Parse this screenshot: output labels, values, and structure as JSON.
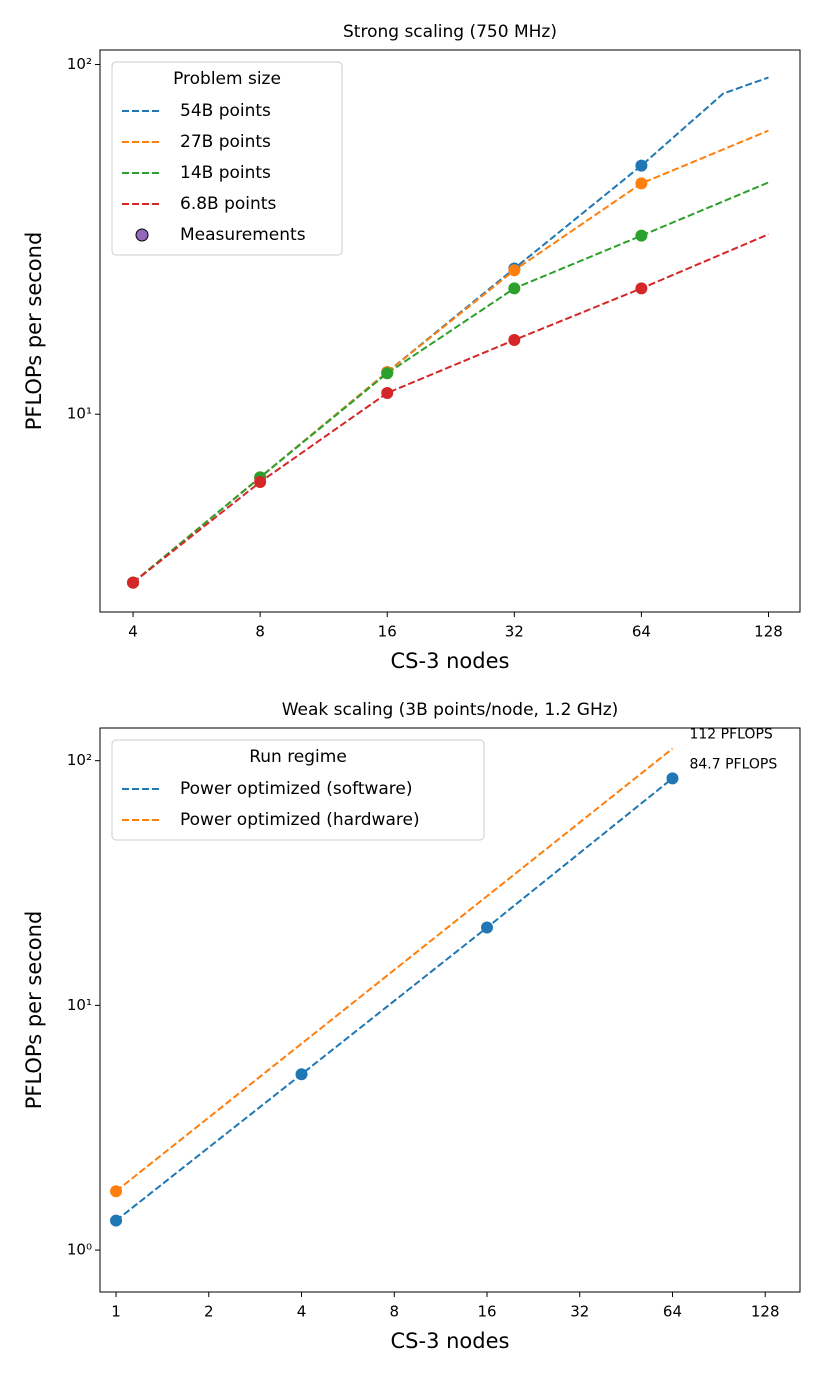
{
  "chart_data": [
    {
      "type": "line",
      "title": "Strong scaling (750 MHz)",
      "xlabel": "CS-3 nodes",
      "ylabel": "PFLOPs per second",
      "xscale": "log",
      "yscale": "log",
      "xlim": [
        3.34,
        152
      ],
      "ylim": [
        2.72,
        110
      ],
      "xticks": [
        4,
        8,
        16,
        32,
        64,
        128
      ],
      "yticks": [
        {
          "value": 10,
          "label": "10¹"
        },
        {
          "value": 100,
          "label": "10²"
        }
      ],
      "legend_title": "Problem size",
      "legend_position": "upper left",
      "marker_legend": {
        "name": "Measurements",
        "color": "#9467bd"
      },
      "series": [
        {
          "name": "54B points",
          "color": "#1f77b4",
          "x": [
            4,
            8,
            16,
            32,
            64,
            100,
            128
          ],
          "values": [
            3.3,
            6.6,
            13.2,
            26.1,
            51.4,
            82.6,
            91.8
          ],
          "measured": [
            true,
            true,
            true,
            true,
            true,
            false,
            false
          ]
        },
        {
          "name": "27B points",
          "color": "#ff7f0e",
          "x": [
            4,
            8,
            16,
            32,
            64,
            128
          ],
          "values": [
            3.3,
            6.6,
            13.2,
            25.8,
            45.7,
            64.7
          ],
          "measured": [
            true,
            true,
            true,
            true,
            true,
            false
          ]
        },
        {
          "name": "14B points",
          "color": "#2ca02c",
          "x": [
            4,
            8,
            16,
            32,
            64,
            128
          ],
          "values": [
            3.3,
            6.6,
            13.1,
            22.9,
            32.4,
            46
          ],
          "measured": [
            true,
            true,
            true,
            true,
            true,
            false
          ]
        },
        {
          "name": "6.8B points",
          "color": "#d62728",
          "x": [
            4,
            8,
            16,
            32,
            64,
            128
          ],
          "values": [
            3.3,
            6.4,
            11.5,
            16.3,
            22.9,
            32.7
          ],
          "measured": [
            true,
            true,
            true,
            true,
            true,
            false
          ]
        }
      ]
    },
    {
      "type": "line",
      "title": "Weak scaling (3B points/node, 1.2 GHz)",
      "xlabel": "CS-3 nodes",
      "ylabel": "PFLOPs per second",
      "xscale": "log",
      "yscale": "log",
      "xlim": [
        0.887,
        166
      ],
      "ylim": [
        0.674,
        136
      ],
      "xticks": [
        1,
        2,
        4,
        8,
        16,
        32,
        64,
        128
      ],
      "yticks": [
        {
          "value": 1,
          "label": "10⁰"
        },
        {
          "value": 10,
          "label": "10¹"
        },
        {
          "value": 100,
          "label": "10²"
        }
      ],
      "legend_title": "Run regime",
      "legend_position": "upper left",
      "series": [
        {
          "name": "Power optimized (software)",
          "color": "#1f77b4",
          "x": [
            1,
            4,
            16,
            64
          ],
          "values": [
            1.32,
            5.23,
            20.8,
            84.7
          ],
          "measured": [
            true,
            true,
            true,
            true
          ]
        },
        {
          "name": "Power optimized (hardware)",
          "color": "#ff7f0e",
          "x": [
            1,
            64
          ],
          "values": [
            1.74,
            112
          ],
          "measured": [
            true,
            false
          ]
        }
      ],
      "annotations": [
        {
          "text": "112 PFLOPS",
          "series": 1,
          "point": 1
        },
        {
          "text": "84.7 PFLOPS",
          "series": 0,
          "point": 3
        }
      ]
    }
  ]
}
